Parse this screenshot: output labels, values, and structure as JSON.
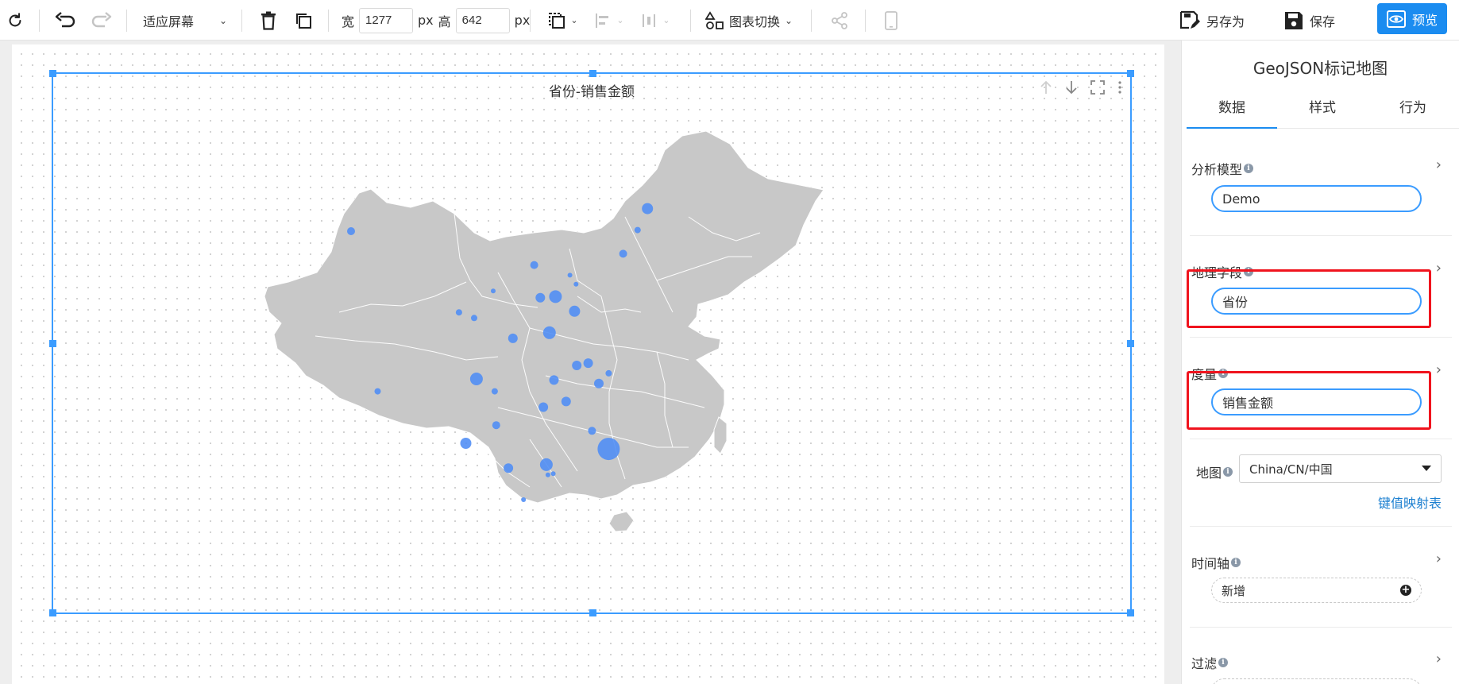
{
  "toolbar": {
    "zoom_label": "适应屏幕",
    "width_label": "宽",
    "width_value": "1277",
    "width_unit": "px",
    "height_label": "高",
    "height_value": "642",
    "height_unit": "px",
    "chart_switch_label": "图表切换",
    "save_as_label": "另存为",
    "save_label": "保存",
    "preview_label": "预览",
    "icons": [
      "refresh-icon",
      "undo-icon",
      "redo-icon",
      "delete-icon",
      "copy-icon",
      "layer-icon",
      "align-icon",
      "distribute-icon",
      "chart-switch-icon",
      "share-icon",
      "mobile-icon",
      "save-as-icon",
      "save-icon",
      "preview-icon"
    ]
  },
  "chart": {
    "title": "省份-销售金额",
    "map_fill": "#c8c8c8",
    "bubble_color": "#4d8cf5"
  },
  "chart_data": {
    "type": "scatter",
    "title": "省份-销售金额",
    "map": "China/CN/中国",
    "bubble_color": "#4d8cf5",
    "points": [
      {
        "lon": 87.6,
        "lat": 43.8,
        "r": 5
      },
      {
        "lon": 91.1,
        "lat": 29.6,
        "r": 4
      },
      {
        "lon": 126.6,
        "lat": 45.8,
        "r": 7
      },
      {
        "lon": 125.3,
        "lat": 43.9,
        "r": 4
      },
      {
        "lon": 123.4,
        "lat": 41.8,
        "r": 5
      },
      {
        "lon": 111.7,
        "lat": 40.8,
        "r": 5
      },
      {
        "lon": 116.4,
        "lat": 39.9,
        "r": 3
      },
      {
        "lon": 117.2,
        "lat": 39.1,
        "r": 3
      },
      {
        "lon": 114.5,
        "lat": 38.0,
        "r": 8
      },
      {
        "lon": 112.5,
        "lat": 37.9,
        "r": 6
      },
      {
        "lon": 117.0,
        "lat": 36.7,
        "r": 7
      },
      {
        "lon": 113.7,
        "lat": 34.8,
        "r": 8
      },
      {
        "lon": 108.9,
        "lat": 34.3,
        "r": 6
      },
      {
        "lon": 106.3,
        "lat": 38.5,
        "r": 3
      },
      {
        "lon": 103.8,
        "lat": 36.1,
        "r": 4
      },
      {
        "lon": 101.8,
        "lat": 36.6,
        "r": 4
      },
      {
        "lon": 118.8,
        "lat": 32.1,
        "r": 6
      },
      {
        "lon": 117.3,
        "lat": 31.9,
        "r": 6
      },
      {
        "lon": 121.5,
        "lat": 31.2,
        "r": 4
      },
      {
        "lon": 120.2,
        "lat": 30.3,
        "r": 6
      },
      {
        "lon": 114.3,
        "lat": 30.6,
        "r": 6
      },
      {
        "lon": 104.1,
        "lat": 30.7,
        "r": 8
      },
      {
        "lon": 106.5,
        "lat": 29.6,
        "r": 4
      },
      {
        "lon": 112.9,
        "lat": 28.2,
        "r": 6
      },
      {
        "lon": 115.9,
        "lat": 28.7,
        "r": 6
      },
      {
        "lon": 119.3,
        "lat": 26.1,
        "r": 5
      },
      {
        "lon": 121.5,
        "lat": 24.5,
        "r": 14
      },
      {
        "lon": 106.7,
        "lat": 26.6,
        "r": 5
      },
      {
        "lon": 102.7,
        "lat": 25.0,
        "r": 7
      },
      {
        "lon": 108.3,
        "lat": 22.8,
        "r": 6
      },
      {
        "lon": 113.3,
        "lat": 23.1,
        "r": 8
      },
      {
        "lon": 114.2,
        "lat": 22.3,
        "r": 3
      },
      {
        "lon": 113.5,
        "lat": 22.2,
        "r": 3
      },
      {
        "lon": 110.3,
        "lat": 20.0,
        "r": 3
      }
    ]
  },
  "panel": {
    "title": "GeoJSON标记地图",
    "tabs": [
      "数据",
      "样式",
      "行为"
    ],
    "analysis_model_label": "分析模型",
    "analysis_model_value": "Demo",
    "geo_field_label": "地理字段",
    "geo_field_value": "省份",
    "measure_label": "度量",
    "measure_value": "销售金额",
    "map_label": "地图",
    "map_value": "China/CN/中国",
    "key_map_link": "键值映射表",
    "timeline_label": "时间轴",
    "add_label": "新增",
    "filter_label": "过滤"
  },
  "colors": {
    "accent": "#1b8cf0",
    "selection": "#3b9cff",
    "highlight": "#f0141e"
  }
}
